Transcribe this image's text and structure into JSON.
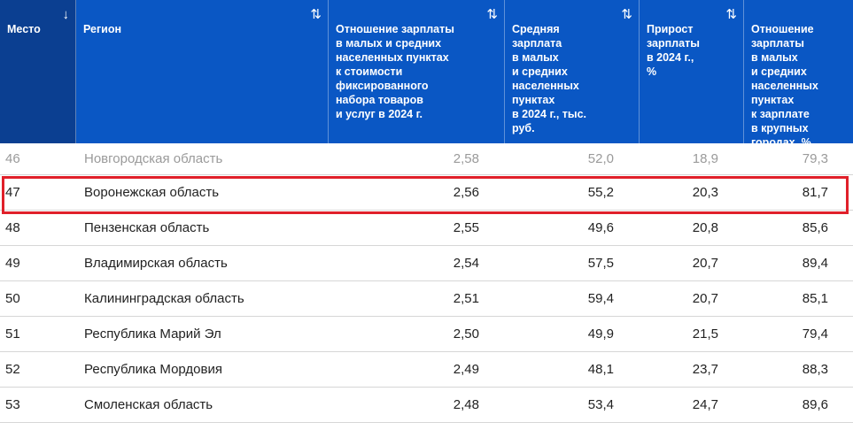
{
  "header": {
    "columns": [
      {
        "label": "Место",
        "sort_icon": "↓"
      },
      {
        "label": "Регион",
        "sort_icon": "⇅"
      },
      {
        "label": "Отношение зарплаты\nв малых и средних\nнаселенных пунктах\nк стоимости\nфиксированного\nнабора товаров\nи услуг в 2024 г.",
        "sort_icon": "⇅"
      },
      {
        "label": "Средняя\nзарплата\nв малых\nи средних\nнаселенных\nпунктах\nв 2024 г., тыс.\nруб.",
        "sort_icon": "⇅"
      },
      {
        "label": "Прирост\nзарплаты\nв 2024 г.,\n%",
        "sort_icon": "⇅"
      },
      {
        "label": "Отношение\nзарплаты\nв малых\nи средних\nнаселенных\nпунктах\nк зарплате\nв крупных\nгородах, %",
        "sort_icon": ""
      }
    ]
  },
  "rows": [
    {
      "rank": "46",
      "region": "Новгородская область",
      "ratio": "2,58",
      "salary": "52,0",
      "growth": "18,9",
      "share": "79,3"
    },
    {
      "rank": "47",
      "region": "Воронежская область",
      "ratio": "2,56",
      "salary": "55,2",
      "growth": "20,3",
      "share": "81,7"
    },
    {
      "rank": "48",
      "region": "Пензенская область",
      "ratio": "2,55",
      "salary": "49,6",
      "growth": "20,8",
      "share": "85,6"
    },
    {
      "rank": "49",
      "region": "Владимирская область",
      "ratio": "2,54",
      "salary": "57,5",
      "growth": "20,7",
      "share": "89,4"
    },
    {
      "rank": "50",
      "region": "Калининградская область",
      "ratio": "2,51",
      "salary": "59,4",
      "growth": "20,7",
      "share": "85,1"
    },
    {
      "rank": "51",
      "region": "Республика Марий Эл",
      "ratio": "2,50",
      "salary": "49,9",
      "growth": "21,5",
      "share": "79,4"
    },
    {
      "rank": "52",
      "region": "Республика Мордовия",
      "ratio": "2,49",
      "salary": "48,1",
      "growth": "23,7",
      "share": "88,3"
    },
    {
      "rank": "53",
      "region": "Смоленская область",
      "ratio": "2,48",
      "salary": "53,4",
      "growth": "24,7",
      "share": "89,6"
    }
  ],
  "colors": {
    "header_bg": "#0a57c4",
    "active_header_bg": "#0b3f91",
    "highlight_border": "#e0202a"
  }
}
